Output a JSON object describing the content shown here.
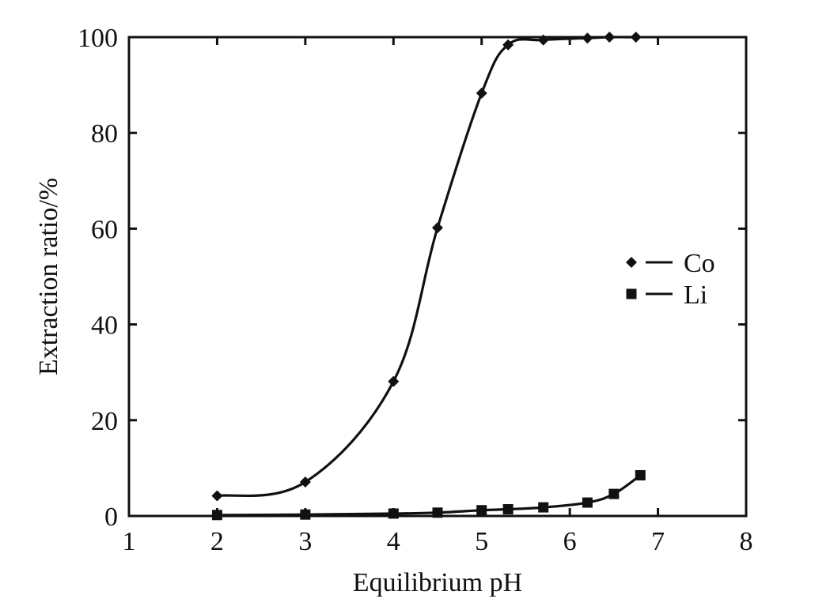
{
  "chart_data": {
    "type": "line",
    "title": "",
    "xlabel": "Equilibrium pH",
    "ylabel": "Extraction ratio/%",
    "xlim": [
      1,
      8
    ],
    "ylim": [
      0,
      100
    ],
    "x_ticks": [
      "1",
      "2",
      "3",
      "4",
      "5",
      "6",
      "7",
      "8"
    ],
    "y_ticks": [
      "0",
      "20",
      "40",
      "60",
      "80",
      "100"
    ],
    "grid": false,
    "legend_position": "right",
    "series": [
      {
        "name": "Co",
        "marker": "diamond",
        "color": "#111111",
        "points": [
          {
            "x": 2.0,
            "y": 4.2
          },
          {
            "x": 3.0,
            "y": 7.1
          },
          {
            "x": 4.0,
            "y": 28.1
          },
          {
            "x": 4.5,
            "y": 60.2
          },
          {
            "x": 5.0,
            "y": 88.3
          },
          {
            "x": 5.3,
            "y": 98.4
          },
          {
            "x": 5.7,
            "y": 99.4
          },
          {
            "x": 6.2,
            "y": 99.8
          },
          {
            "x": 6.45,
            "y": 100.0
          },
          {
            "x": 6.75,
            "y": 100.0
          }
        ]
      },
      {
        "name": "Li",
        "marker": "square",
        "color": "#111111",
        "points": [
          {
            "x": 2.0,
            "y": 0.2
          },
          {
            "x": 3.0,
            "y": 0.3
          },
          {
            "x": 4.0,
            "y": 0.5
          },
          {
            "x": 4.5,
            "y": 0.7
          },
          {
            "x": 5.0,
            "y": 1.2
          },
          {
            "x": 5.3,
            "y": 1.4
          },
          {
            "x": 5.7,
            "y": 1.8
          },
          {
            "x": 6.2,
            "y": 2.8
          },
          {
            "x": 6.5,
            "y": 4.6
          },
          {
            "x": 6.8,
            "y": 8.5
          }
        ]
      }
    ]
  }
}
